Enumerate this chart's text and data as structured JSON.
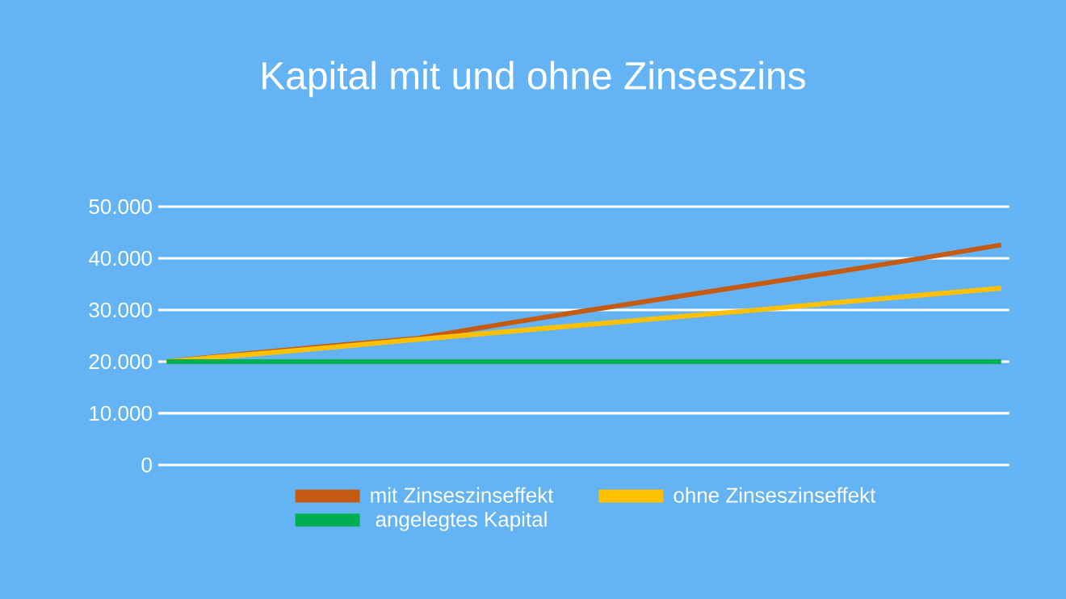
{
  "chart_data": {
    "type": "line",
    "title": "Kapital mit und ohne Zinseszins",
    "categories": [
      null,
      null,
      null,
      null,
      null,
      null,
      null,
      null,
      null,
      null,
      null
    ],
    "series": [
      {
        "name": "mit Zinseszinseffekt",
        "color": "#c55a11",
        "values": [
          20000,
          21600,
          23100,
          24500,
          27200,
          29800,
          32300,
          34800,
          37300,
          39900,
          42600
        ]
      },
      {
        "name": "ohne Zinseszinseffekt",
        "color": "#ffc000",
        "values": [
          20000,
          21400,
          22800,
          24300,
          25700,
          27100,
          28500,
          29900,
          31400,
          32800,
          34200
        ]
      },
      {
        "name": "angelegtes Kapital",
        "color": "#00b050",
        "values": [
          20000,
          20000,
          20000,
          20000,
          20000,
          20000,
          20000,
          20000,
          20000,
          20000,
          20000
        ]
      }
    ],
    "ylim": [
      0,
      50000
    ],
    "yticks": [
      {
        "value": 50000,
        "label": "50.000"
      },
      {
        "value": 40000,
        "label": "40.000"
      },
      {
        "value": 30000,
        "label": "30.000"
      },
      {
        "value": 20000,
        "label": "20.000"
      },
      {
        "value": 10000,
        "label": "10.000"
      },
      0
    ],
    "grid": "y",
    "legend": "bottom",
    "marker": "none",
    "line_style": "solid",
    "tick_labels": "y"
  }
}
